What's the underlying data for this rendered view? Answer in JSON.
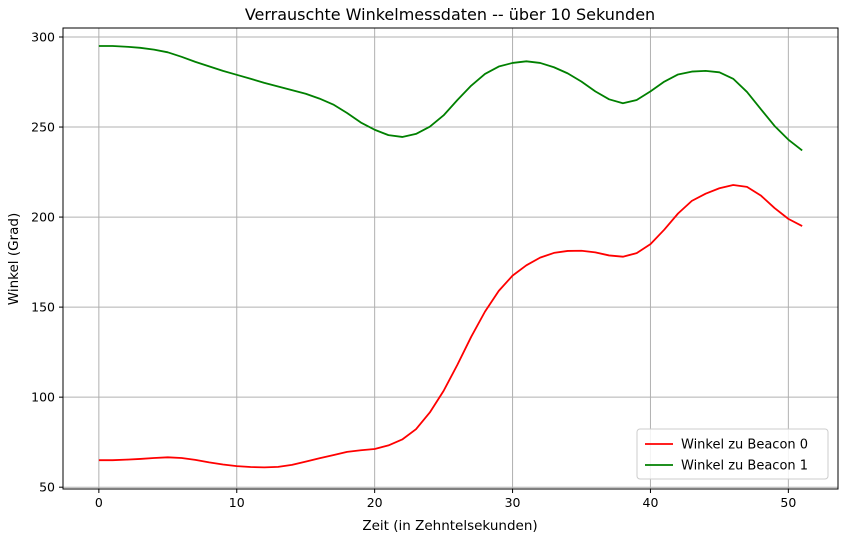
{
  "chart_data": {
    "type": "line",
    "title": "Verrauschte Winkelmessdaten -- über 10 Sekunden",
    "xlabel": "Zeit (in Zehntelsekunden)",
    "ylabel": "Winkel (Grad)",
    "xlim": [
      -2.6,
      53.6
    ],
    "ylim": [
      49,
      305
    ],
    "xticks": [
      0,
      10,
      20,
      30,
      40,
      50
    ],
    "yticks": [
      50,
      100,
      150,
      200,
      250,
      300
    ],
    "grid": true,
    "legend_position": "bottom-right",
    "x": [
      0,
      1,
      2,
      3,
      4,
      5,
      6,
      7,
      8,
      9,
      10,
      11,
      12,
      13,
      14,
      15,
      16,
      17,
      18,
      19,
      20,
      21,
      22,
      23,
      24,
      25,
      26,
      27,
      28,
      29,
      30,
      31,
      32,
      33,
      34,
      35,
      36,
      37,
      38,
      39,
      40,
      41,
      42,
      43,
      44,
      45,
      46,
      47,
      48,
      49,
      50,
      51
    ],
    "series": [
      {
        "name": "Winkel zu Beacon 0",
        "color": "#ff0000",
        "values": [
          65,
          65,
          65.3,
          65.7,
          66.2,
          66.6,
          66.2,
          65.2,
          63.8,
          62.6,
          61.7,
          61.2,
          61,
          61.3,
          62.4,
          64.2,
          66.1,
          67.8,
          69.6,
          70.5,
          71.2,
          73.2,
          76.5,
          82.2,
          91.5,
          103.5,
          118,
          133.5,
          147.5,
          159,
          167.5,
          173.2,
          177.5,
          180.1,
          181.2,
          181.3,
          180.4,
          178.7,
          178,
          180,
          185,
          193,
          202,
          209,
          213,
          216,
          217.8,
          216.8,
          212,
          205,
          199,
          195
        ]
      },
      {
        "name": "Winkel zu Beacon 1",
        "color": "#008000",
        "values": [
          295,
          295,
          294.6,
          294,
          293,
          291.5,
          289,
          286.2,
          283.7,
          281.2,
          279,
          276.8,
          274.5,
          272.5,
          270.5,
          268.5,
          265.8,
          262.5,
          257.8,
          252.5,
          248.5,
          245.5,
          244.5,
          246.2,
          250.2,
          256.5,
          265,
          273,
          279.5,
          283.6,
          285.6,
          286.5,
          285.6,
          283.2,
          279.8,
          275.2,
          269.8,
          265.4,
          263.2,
          265,
          269.8,
          275.2,
          279.2,
          280.8,
          281.2,
          280.4,
          276.8,
          269.5,
          260,
          250.6,
          243,
          237
        ]
      }
    ]
  }
}
